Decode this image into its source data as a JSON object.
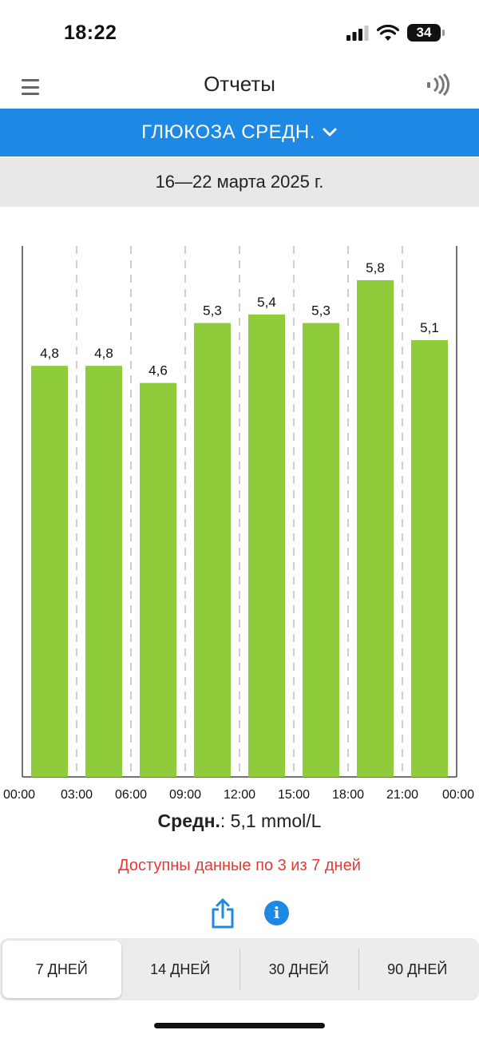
{
  "status_bar": {
    "time": "18:22",
    "battery": "34"
  },
  "header": {
    "title": "Отчеты",
    "menu_icon": "menu-icon",
    "nfc_icon": "nfc-scan-icon"
  },
  "metric_selector": {
    "label": "ГЛЮКОЗА СРЕДН."
  },
  "date_range": "16—22 марта 2025 г.",
  "colors": {
    "accent": "#1e88e5",
    "bar": "#8ecc3c",
    "warning": "#e53935"
  },
  "chart_data": {
    "type": "bar",
    "categories": [
      "00:00",
      "03:00",
      "06:00",
      "09:00",
      "12:00",
      "15:00",
      "18:00",
      "21:00"
    ],
    "x_ticks": [
      "00:00",
      "03:00",
      "06:00",
      "09:00",
      "12:00",
      "15:00",
      "18:00",
      "21:00",
      "00:00"
    ],
    "values": [
      4.8,
      4.8,
      4.6,
      5.3,
      5.4,
      5.3,
      5.8,
      5.1
    ],
    "value_labels": [
      "4,8",
      "4,8",
      "4,6",
      "5,3",
      "5,4",
      "5,3",
      "5,8",
      "5,1"
    ],
    "ylim": [
      0,
      6.2
    ],
    "grid": "vertical dashed",
    "title": "",
    "xlabel": "",
    "ylabel": ""
  },
  "summary": {
    "label": "Средн.",
    "value": ": 5,1 mmol/L"
  },
  "data_note": "Доступны данные по 3 из 7 дней",
  "actions": {
    "share_icon": "share-icon",
    "info_icon": "info-icon",
    "info_glyph": "i"
  },
  "periods": [
    {
      "label": "7 ДНЕЙ",
      "active": true
    },
    {
      "label": "14 ДНЕЙ",
      "active": false
    },
    {
      "label": "30 ДНЕЙ",
      "active": false
    },
    {
      "label": "90 ДНЕЙ",
      "active": false
    }
  ]
}
